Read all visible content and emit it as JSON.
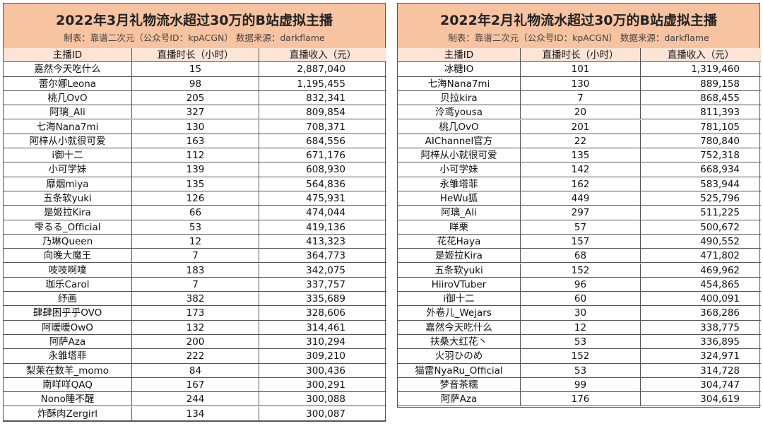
{
  "tables": [
    {
      "title": "2022年3月礼物流水超过30万的B站虚拟主播",
      "subtitle": "制表：靠谱二次元（公众号ID：kpACGN） 数据来源：darkflame",
      "headers": [
        "主播ID",
        "直播时长（小时）",
        "直播收入（元）"
      ],
      "rows": [
        [
          "嘉然今天吃什么",
          15,
          "2,887,040"
        ],
        [
          "蕾尔娜Leona",
          98,
          "1,195,455"
        ],
        [
          "桃几OvO",
          205,
          "832,341"
        ],
        [
          "阿璃_Ali",
          327,
          "809,854"
        ],
        [
          "七海Nana7mi",
          130,
          "708,371"
        ],
        [
          "阿梓从小就很可爱",
          163,
          "684,556"
        ],
        [
          "i御十二",
          112,
          "671,176"
        ],
        [
          "小可学妹",
          139,
          "608,930"
        ],
        [
          "靡烟miya",
          135,
          "564,836"
        ],
        [
          "五条软yuki",
          126,
          "475,931"
        ],
        [
          "是姬拉Kira",
          66,
          "474,044"
        ],
        [
          "雫るる_Official",
          53,
          "419,136"
        ],
        [
          "乃琳Queen",
          12,
          "413,323"
        ],
        [
          "向晚大魔王",
          7,
          "364,773"
        ],
        [
          "吱吱啊噗",
          183,
          "342,075"
        ],
        [
          "珈乐Carol",
          7,
          "337,757"
        ],
        [
          "纾画",
          382,
          "335,689"
        ],
        [
          "肆肆困乎乎OVO",
          173,
          "328,606"
        ],
        [
          "阿暖暖OwO",
          132,
          "314,461"
        ],
        [
          "阿萨Aza",
          200,
          "310,294"
        ],
        [
          "永雏塔菲",
          222,
          "309,210"
        ],
        [
          "梨茉在数羊_momo",
          84,
          "300,436"
        ],
        [
          "南咩咩QAQ",
          167,
          "300,291"
        ],
        [
          "Nono睡不醒",
          244,
          "300,088"
        ],
        [
          "炸酥肉Zergirl",
          134,
          "300,087"
        ]
      ]
    },
    {
      "title": "2022年2月礼物流水超过30万的B站虚拟主播",
      "subtitle": "制表：靠谱二次元（公众号ID：kpACGN） 数据来源：darkflame",
      "headers": [
        "主播ID",
        "直播时长（小时）",
        "直播收入（元）"
      ],
      "rows": [
        [
          "冰糖IO",
          101,
          "1,319,460"
        ],
        [
          "七海Nana7mi",
          130,
          "889,158"
        ],
        [
          "贝拉kira",
          7,
          "868,455"
        ],
        [
          "泠鸢yousa",
          20,
          "811,393"
        ],
        [
          "桃几OvO",
          201,
          "781,105"
        ],
        [
          "AIChannel官方",
          22,
          "780,840"
        ],
        [
          "阿梓从小就很可爱",
          135,
          "752,318"
        ],
        [
          "小可学妹",
          142,
          "668,934"
        ],
        [
          "永雏塔菲",
          162,
          "583,944"
        ],
        [
          "HeWu狐",
          449,
          "525,796"
        ],
        [
          "阿璃_Ali",
          297,
          "511,225"
        ],
        [
          "咩栗",
          57,
          "500,672"
        ],
        [
          "花花Haya",
          157,
          "490,552"
        ],
        [
          "是姬拉Kira",
          68,
          "471,802"
        ],
        [
          "五条软yuki",
          152,
          "469,962"
        ],
        [
          "HiiroVTuber",
          96,
          "454,865"
        ],
        [
          "i御十二",
          60,
          "400,091"
        ],
        [
          "外卷儿_Wejars",
          30,
          "368,286"
        ],
        [
          "嘉然今天吃什么",
          12,
          "338,775"
        ],
        [
          "扶桑大红花丶",
          53,
          "336,895"
        ],
        [
          "火羽ひのめ",
          152,
          "324,971"
        ],
        [
          "猫雷NyaRu_Official",
          53,
          "314,728"
        ],
        [
          "梦音茶糯",
          99,
          "304,747"
        ],
        [
          "阿萨Aza",
          176,
          "304,619"
        ]
      ]
    }
  ]
}
